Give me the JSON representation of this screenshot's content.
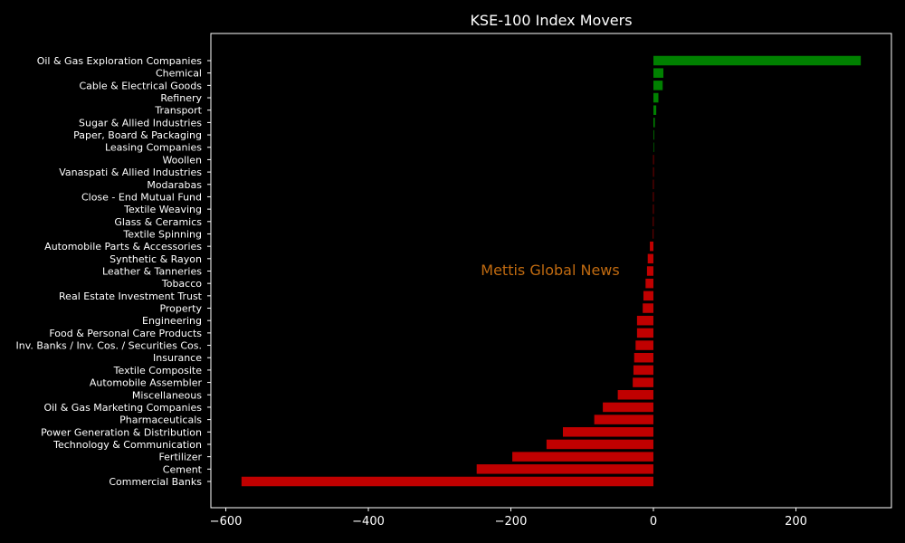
{
  "chart_data": {
    "type": "bar",
    "orientation": "horizontal",
    "title": "KSE-100 Index Movers",
    "watermark": "Mettis Global News",
    "xlim": [
      -621,
      334
    ],
    "xticks": [
      -600,
      -400,
      -200,
      0,
      200
    ],
    "positive_color": "#008000",
    "negative_color": "#c00000",
    "grid": false,
    "categories": [
      "Oil & Gas Exploration Companies",
      "Chemical",
      "Cable & Electrical Goods",
      "Refinery",
      "Transport",
      "Sugar & Allied Industries",
      "Paper, Board & Packaging",
      "Leasing Companies",
      "Woollen",
      "Vanaspati & Allied Industries",
      "Modarabas",
      "Close - End Mutual Fund",
      "Textile Weaving",
      "Glass & Ceramics",
      "Textile Spinning",
      "Automobile Parts & Accessories",
      "Synthetic & Rayon",
      "Leather & Tanneries",
      "Tobacco",
      "Real Estate Investment Trust",
      "Property",
      "Engineering",
      "Food & Personal Care Products",
      "Inv. Banks / Inv. Cos. / Securities Cos.",
      "Insurance",
      "Textile Composite",
      "Automobile Assembler",
      "Miscellaneous",
      "Oil & Gas Marketing Companies",
      "Pharmaceuticals",
      "Power Generation & Distribution",
      "Technology & Communication",
      "Fertilizer",
      "Cement",
      "Commercial Banks"
    ],
    "values": [
      291,
      14,
      13,
      7,
      4,
      2,
      1,
      0,
      -0.3,
      -0.3,
      -0.4,
      -0.4,
      -0.4,
      -0.5,
      -0.6,
      -5,
      -8,
      -9,
      -11,
      -14,
      -15,
      -23,
      -23,
      -25,
      -27,
      -28,
      -29,
      -50,
      -71,
      -83,
      -127,
      -150,
      -198,
      -248,
      -578
    ]
  }
}
